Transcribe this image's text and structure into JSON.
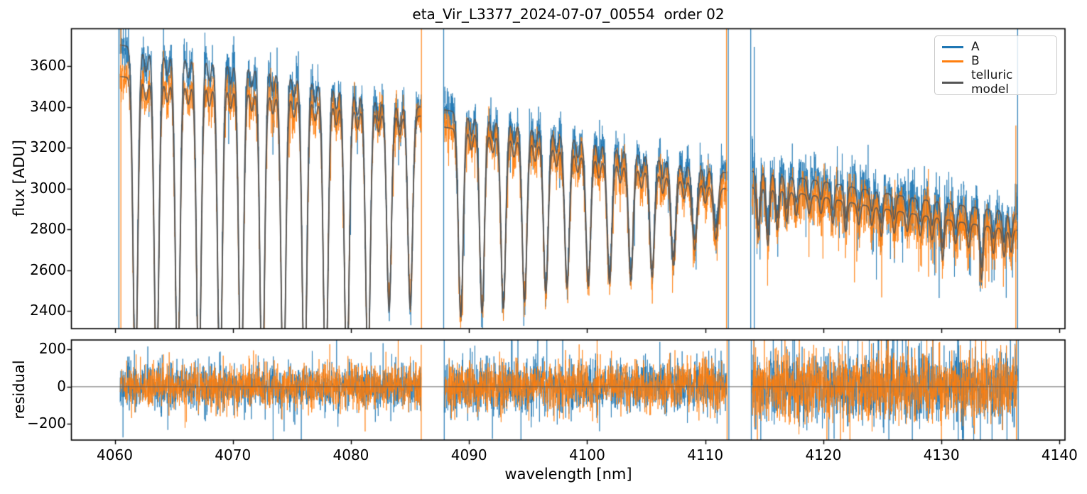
{
  "chart_data": {
    "type": "line",
    "title": "eta_Vir_L3377_2024-07-07_00554  order 02",
    "xlabel": "wavelength [nm]",
    "ylabel_top": "flux [ADU]",
    "ylabel_bottom": "residual",
    "grid": false,
    "legend_position": "upper right",
    "xlim": [
      4056.33,
      4140.46
    ],
    "x_ticks": [
      4060,
      4070,
      4080,
      4090,
      4100,
      4110,
      4120,
      4130,
      4140
    ],
    "top_panel": {
      "ylim": [
        2313,
        3784
      ],
      "y_ticks": [
        3600,
        3400,
        3200,
        3000,
        2800,
        2600,
        2400
      ],
      "y_tick_labels": [
        "3600",
        "3400",
        "3200",
        "3000",
        "2800",
        "2600",
        "2400"
      ]
    },
    "bottom_panel": {
      "ylim": [
        -286,
        251
      ],
      "y_ticks": [
        200,
        0,
        -200
      ],
      "y_tick_labels": [
        "200",
        "0",
        "−200"
      ],
      "zero_line": 0
    },
    "series": [
      {
        "name": "A",
        "color": "#1f77b4"
      },
      {
        "name": "B",
        "color": "#ff7f0e"
      },
      {
        "name": "telluric model",
        "color": "#555555"
      }
    ],
    "segments": [
      [
        4060.45,
        4085.95
      ],
      [
        4087.9,
        4111.85
      ],
      [
        4113.95,
        4136.45
      ]
    ],
    "continuum_A": [
      [
        4060.4,
        3705
      ],
      [
        4064,
        3670
      ],
      [
        4068,
        3640
      ],
      [
        4072,
        3605
      ],
      [
        4076,
        3550
      ],
      [
        4080,
        3480
      ],
      [
        4084,
        3415
      ],
      [
        4086,
        3400
      ],
      [
        4088,
        3385
      ],
      [
        4092,
        3345
      ],
      [
        4096,
        3298
      ],
      [
        4100,
        3240
      ],
      [
        4104,
        3185
      ],
      [
        4108,
        3125
      ],
      [
        4112,
        3075
      ],
      [
        4114,
        3085
      ],
      [
        4117,
        3060
      ],
      [
        4120,
        3035
      ],
      [
        4124,
        2990
      ],
      [
        4128,
        2950
      ],
      [
        4132,
        2915
      ],
      [
        4135,
        2890
      ],
      [
        4136.5,
        2875
      ]
    ],
    "continuum_B": [
      [
        4060.4,
        3550
      ],
      [
        4064,
        3528
      ],
      [
        4068,
        3505
      ],
      [
        4072,
        3480
      ],
      [
        4076,
        3445
      ],
      [
        4080,
        3400
      ],
      [
        4084,
        3365
      ],
      [
        4086,
        3355
      ],
      [
        4088,
        3300
      ],
      [
        4092,
        3268
      ],
      [
        4096,
        3222
      ],
      [
        4100,
        3158
      ],
      [
        4104,
        3103
      ],
      [
        4108,
        3045
      ],
      [
        4112,
        2995
      ],
      [
        4114,
        3005
      ],
      [
        4117,
        2985
      ],
      [
        4120,
        2958
      ],
      [
        4124,
        2912
      ],
      [
        4128,
        2872
      ],
      [
        4132,
        2832
      ],
      [
        4135,
        2805
      ],
      [
        4136.5,
        2795
      ]
    ],
    "telluric_deep_lines": [
      [
        4061.75,
        1600
      ],
      [
        4063.54,
        1600
      ],
      [
        4065.33,
        1600
      ],
      [
        4067.12,
        1600
      ],
      [
        4068.91,
        1600
      ],
      [
        4070.7,
        1600
      ],
      [
        4072.49,
        1600
      ],
      [
        4074.28,
        1600
      ],
      [
        4076.07,
        1550
      ],
      [
        4077.86,
        1500
      ],
      [
        4079.65,
        1450
      ],
      [
        4081.44,
        1350
      ],
      [
        4083.23,
        1030
      ],
      [
        4085.02,
        1000
      ],
      [
        4089.3,
        1000
      ],
      [
        4091.1,
        960
      ],
      [
        4092.9,
        920
      ],
      [
        4094.7,
        860
      ],
      [
        4096.5,
        790
      ],
      [
        4098.3,
        730
      ],
      [
        4100.1,
        690
      ],
      [
        4101.9,
        650
      ],
      [
        4103.7,
        610
      ],
      [
        4105.5,
        560
      ],
      [
        4107.3,
        470
      ],
      [
        4109.1,
        360
      ],
      [
        4110.9,
        280
      ]
    ],
    "telluric_deep_width": 0.2,
    "telluric_secondary_lines": [
      [
        4062.65,
        110
      ],
      [
        4064.44,
        110
      ],
      [
        4066.23,
        110
      ],
      [
        4068.02,
        110
      ],
      [
        4069.81,
        110
      ],
      [
        4071.6,
        110
      ],
      [
        4073.39,
        110
      ],
      [
        4075.18,
        110
      ],
      [
        4076.97,
        110
      ],
      [
        4078.76,
        110
      ],
      [
        4080.55,
        110
      ],
      [
        4082.34,
        110
      ],
      [
        4084.13,
        110
      ],
      [
        4090.2,
        100
      ],
      [
        4092.0,
        100
      ],
      [
        4093.8,
        100
      ],
      [
        4095.6,
        100
      ],
      [
        4097.4,
        100
      ],
      [
        4099.2,
        100
      ],
      [
        4101.0,
        100
      ],
      [
        4102.8,
        100
      ],
      [
        4104.6,
        100
      ],
      [
        4106.4,
        100
      ],
      [
        4108.2,
        100
      ],
      [
        4110.0,
        100
      ]
    ],
    "telluric_secondary_width": 0.14,
    "telluric_seg3_lines": [
      [
        4114.5,
        260
      ],
      [
        4115.3,
        300
      ],
      [
        4116.1,
        210
      ],
      [
        4116.9,
        160
      ],
      [
        4117.7,
        120
      ],
      [
        4118.8,
        100
      ],
      [
        4119.8,
        90
      ],
      [
        4120.8,
        130
      ],
      [
        4121.9,
        160
      ],
      [
        4123.0,
        110
      ],
      [
        4124.1,
        100
      ],
      [
        4124.9,
        150
      ],
      [
        4126.0,
        120
      ],
      [
        4127.1,
        100
      ],
      [
        4128.2,
        110
      ],
      [
        4129.2,
        120
      ],
      [
        4130.1,
        220
      ],
      [
        4131.2,
        120
      ],
      [
        4132.3,
        130
      ],
      [
        4133.4,
        290
      ],
      [
        4134.4,
        140
      ],
      [
        4135.3,
        150
      ],
      [
        4135.9,
        120
      ]
    ],
    "telluric_seg3_width": 0.13,
    "model_B_depth_scale": 0.92,
    "model_alpha": 0.85,
    "data_alpha": 0.85,
    "noise": {
      "top_sigma_A": [
        52,
        52,
        68
      ],
      "top_sigma_B": [
        50,
        50,
        62
      ],
      "resid_sigma_A": [
        62,
        68,
        95
      ],
      "resid_sigma_B": [
        58,
        64,
        88
      ],
      "tail_probability": [
        0.03,
        0.035,
        0.05
      ],
      "tail_scale": 2.3
    },
    "spikes_top": [
      {
        "x": 4060.35,
        "series": 0,
        "y0": 2313,
        "y1": 3784
      },
      {
        "x": 4060.52,
        "series": 1,
        "y0": 2313,
        "y1": 3784
      },
      {
        "x": 4085.97,
        "series": 1,
        "y0": 2313,
        "y1": 3784
      },
      {
        "x": 4087.85,
        "series": 0,
        "y0": 2313,
        "y1": 3784
      },
      {
        "x": 4111.8,
        "series": 1,
        "y0": 2313,
        "y1": 3784
      },
      {
        "x": 4111.95,
        "series": 0,
        "y0": 2313,
        "y1": 3784
      },
      {
        "x": 4113.85,
        "series": 0,
        "y0": 2313,
        "y1": 3784
      },
      {
        "x": 4114.15,
        "series": 0,
        "y0": 2313,
        "y1": 3695
      },
      {
        "x": 4136.3,
        "series": 1,
        "y0": 2313,
        "y1": 3310
      },
      {
        "x": 4136.45,
        "series": 0,
        "y0": 2313,
        "y1": 3784
      }
    ],
    "spikes_bottom": [
      {
        "x": 4060.7,
        "series": 0,
        "y0": -272,
        "y1": 85
      },
      {
        "x": 4085.95,
        "series": 1,
        "y0": -286,
        "y1": 225
      },
      {
        "x": 4087.9,
        "series": 0,
        "y0": -286,
        "y1": 251
      },
      {
        "x": 4111.85,
        "series": 1,
        "y0": -286,
        "y1": 251
      },
      {
        "x": 4112.0,
        "series": 0,
        "y0": -286,
        "y1": 251
      },
      {
        "x": 4113.9,
        "series": 0,
        "y0": -286,
        "y1": 251
      },
      {
        "x": 4136.35,
        "series": 1,
        "y0": -286,
        "y1": 251
      },
      {
        "x": 4136.5,
        "series": 0,
        "y0": -286,
        "y1": 251
      }
    ]
  }
}
